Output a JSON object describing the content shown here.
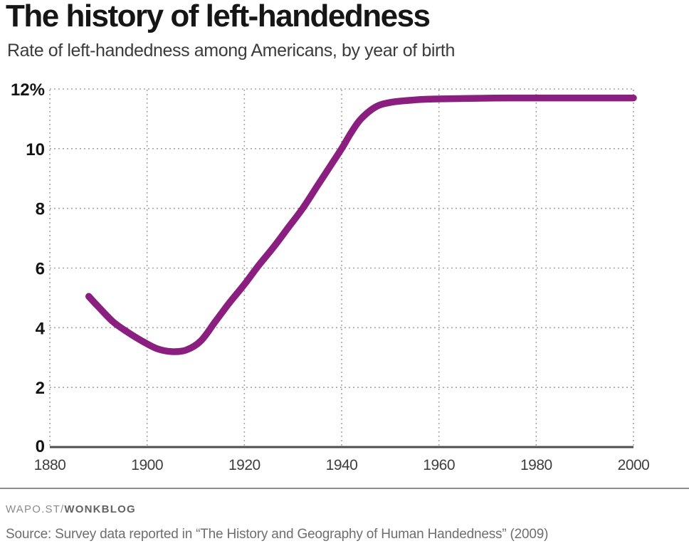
{
  "header": {
    "title": "The history of left-handedness",
    "subtitle": "Rate of left-handedness among Americans, by year of birth"
  },
  "footer": {
    "brand_prefix": "WAPO.ST/",
    "brand_bold": "WONKBLOG",
    "source": "Source: Survey data reported in “The History and Geography of Human Handedness” (2009)"
  },
  "colors": {
    "line": "#8b1f7f",
    "grid_dots": "#9a9a9a",
    "axis": "#4d4d4d",
    "y_label": "#141414",
    "x_label": "#3f3f3f",
    "divider": "#8c8c8c"
  },
  "chart_data": {
    "type": "line",
    "title": "The history of left-handedness",
    "subtitle": "Rate of left-handedness among Americans, by year of birth",
    "xlabel": "",
    "ylabel": "",
    "xlim": [
      1880,
      2000
    ],
    "ylim": [
      0,
      12
    ],
    "grid": "dotted",
    "legend": "none",
    "line_color": "#8b1f7f",
    "x_ticks": [
      1880,
      1900,
      1920,
      1940,
      1960,
      1980,
      2000
    ],
    "y_ticks": [
      {
        "value": 0,
        "label": "0"
      },
      {
        "value": 2,
        "label": "2"
      },
      {
        "value": 4,
        "label": "4"
      },
      {
        "value": 6,
        "label": "6"
      },
      {
        "value": 8,
        "label": "8"
      },
      {
        "value": 10,
        "label": "10"
      },
      {
        "value": 12,
        "label": "12%"
      }
    ],
    "series": [
      {
        "name": "Rate of left-handedness among Americans (%)",
        "points": [
          {
            "year": 1888,
            "value": 5.05
          },
          {
            "year": 1890,
            "value": 4.7
          },
          {
            "year": 1893,
            "value": 4.2
          },
          {
            "year": 1896,
            "value": 3.85
          },
          {
            "year": 1899,
            "value": 3.55
          },
          {
            "year": 1902,
            "value": 3.3
          },
          {
            "year": 1905,
            "value": 3.2
          },
          {
            "year": 1908,
            "value": 3.25
          },
          {
            "year": 1911,
            "value": 3.55
          },
          {
            "year": 1914,
            "value": 4.2
          },
          {
            "year": 1917,
            "value": 4.85
          },
          {
            "year": 1920,
            "value": 5.45
          },
          {
            "year": 1923,
            "value": 6.1
          },
          {
            "year": 1926,
            "value": 6.7
          },
          {
            "year": 1929,
            "value": 7.35
          },
          {
            "year": 1932,
            "value": 8.0
          },
          {
            "year": 1935,
            "value": 8.75
          },
          {
            "year": 1938,
            "value": 9.5
          },
          {
            "year": 1940,
            "value": 10.0
          },
          {
            "year": 1942,
            "value": 10.55
          },
          {
            "year": 1944,
            "value": 11.0
          },
          {
            "year": 1947,
            "value": 11.4
          },
          {
            "year": 1950,
            "value": 11.55
          },
          {
            "year": 1954,
            "value": 11.62
          },
          {
            "year": 1958,
            "value": 11.66
          },
          {
            "year": 1965,
            "value": 11.68
          },
          {
            "year": 1975,
            "value": 11.7
          },
          {
            "year": 1985,
            "value": 11.7
          },
          {
            "year": 1995,
            "value": 11.7
          },
          {
            "year": 2000,
            "value": 11.7
          }
        ]
      }
    ]
  }
}
